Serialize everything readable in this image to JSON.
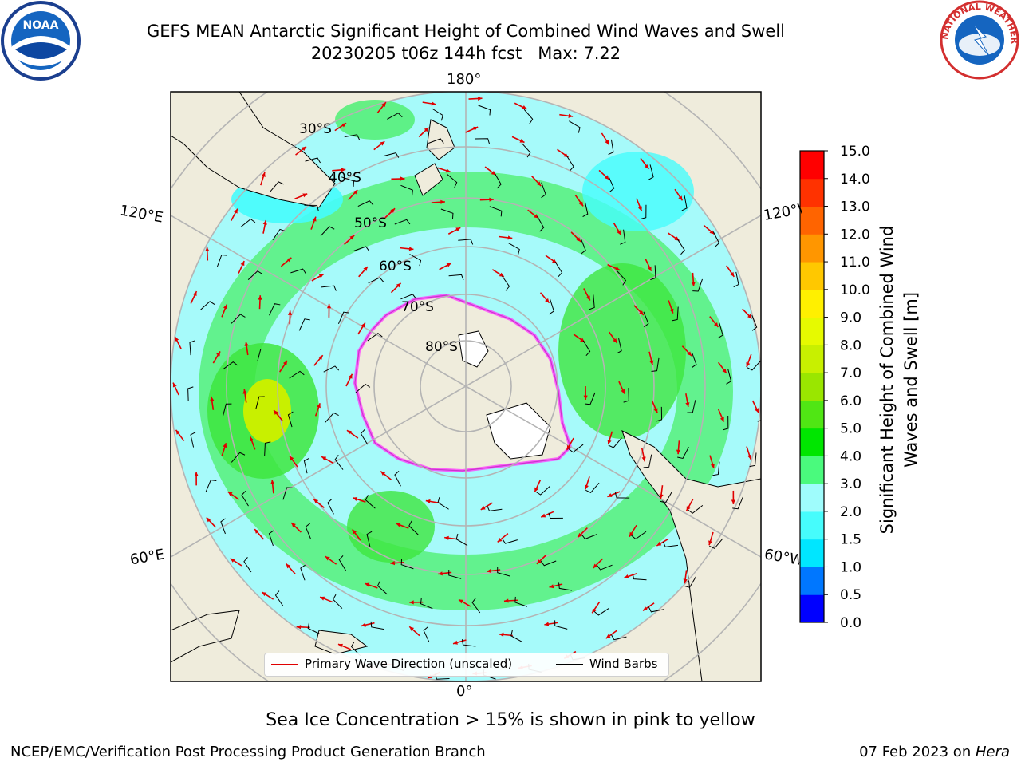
{
  "title": {
    "line1": "GEFS MEAN Antarctic Significant Height of Combined Wind Waves and Swell",
    "line2": "20230205 t06z 144h fcst   Max: 7.22"
  },
  "logos": {
    "left": {
      "text": "NOAA",
      "icon": "noaa-logo-icon"
    },
    "right": {
      "text": "NATIONAL WEATHER SERVICE",
      "icon": "nws-logo-icon"
    }
  },
  "map": {
    "longitude_labels": {
      "top": "180°",
      "bottom": "0°",
      "left_upper": "120°E",
      "left_lower": "60°E",
      "right_upper": "120°W",
      "right_lower": "60°W"
    },
    "latitude_labels": [
      "30°S",
      "40°S",
      "50°S",
      "60°S",
      "70°S",
      "80°S"
    ],
    "legend": {
      "primary_wave": "Primary Wave Direction (unscaled)",
      "wind_barbs": "Wind Barbs"
    }
  },
  "chart_data": {
    "type": "heatmap",
    "title": "GEFS MEAN Antarctic Significant Height of Combined Wind Waves and Swell",
    "subtitle": "20230205 t06z 144h fcst   Max: 7.22",
    "max_value": 7.22,
    "colorbar": {
      "label": "Significant Height of Combined Wind Waves and Swell [m]",
      "ticks": [
        "0.0",
        "0.5",
        "1.0",
        "1.5",
        "2.0",
        "3.0",
        "4.0",
        "5.0",
        "6.0",
        "7.0",
        "8.0",
        "9.0",
        "10.0",
        "11.0",
        "12.0",
        "13.0",
        "14.0",
        "15.0"
      ],
      "colors": [
        "#0000ff",
        "#0077ff",
        "#00e6ff",
        "#46fcfc",
        "#9ffcfc",
        "#4afa7d",
        "#00e600",
        "#50e614",
        "#9ae600",
        "#c8f000",
        "#e6fa00",
        "#fff000",
        "#ffc800",
        "#ff9600",
        "#ff6400",
        "#ff3200",
        "#ff0000"
      ]
    },
    "axes": {
      "projection": "south polar stereographic",
      "lat_range": [
        -90,
        -25
      ]
    },
    "annotations": [
      "Sea Ice Concentration > 15% is shown in pink to yellow"
    ]
  },
  "footer": {
    "left": "NCEP/EMC/Verification Post Processing Product Generation Branch",
    "right_date": "07 Feb 2023 on ",
    "right_host": "Hera"
  }
}
